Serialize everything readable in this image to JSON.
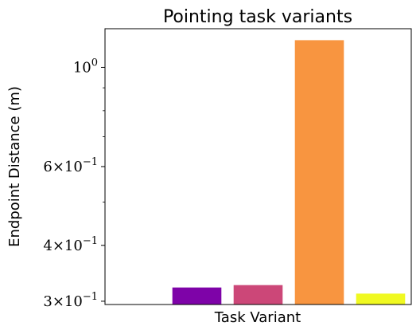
{
  "chart_data": {
    "type": "bar",
    "title": "Pointing task variants",
    "xlabel": "Task Variant",
    "ylabel": "Endpoint Distance (m)",
    "yscale": "log",
    "ylim": [
      0.295,
      1.22
    ],
    "categories": [
      "",
      "",
      "",
      "",
      ""
    ],
    "values": [
      null,
      0.322,
      0.326,
      1.15,
      0.312
    ],
    "colors": [
      "#0d0887",
      "#7e03a8",
      "#cc4778",
      "#f89540",
      "#f0f921"
    ],
    "yticks": [
      {
        "value": 1.0,
        "mantissa": "",
        "base": "10",
        "exponent": "0"
      },
      {
        "value": 0.6,
        "mantissa": "6",
        "base": "10",
        "exponent": "−1"
      },
      {
        "value": 0.4,
        "mantissa": "4",
        "base": "10",
        "exponent": "−1"
      },
      {
        "value": 0.3,
        "mantissa": "3",
        "base": "10",
        "exponent": "−1"
      }
    ],
    "minor_yticks": [
      0.5,
      0.7,
      0.8,
      0.9
    ],
    "grid": false,
    "legend": "none"
  }
}
